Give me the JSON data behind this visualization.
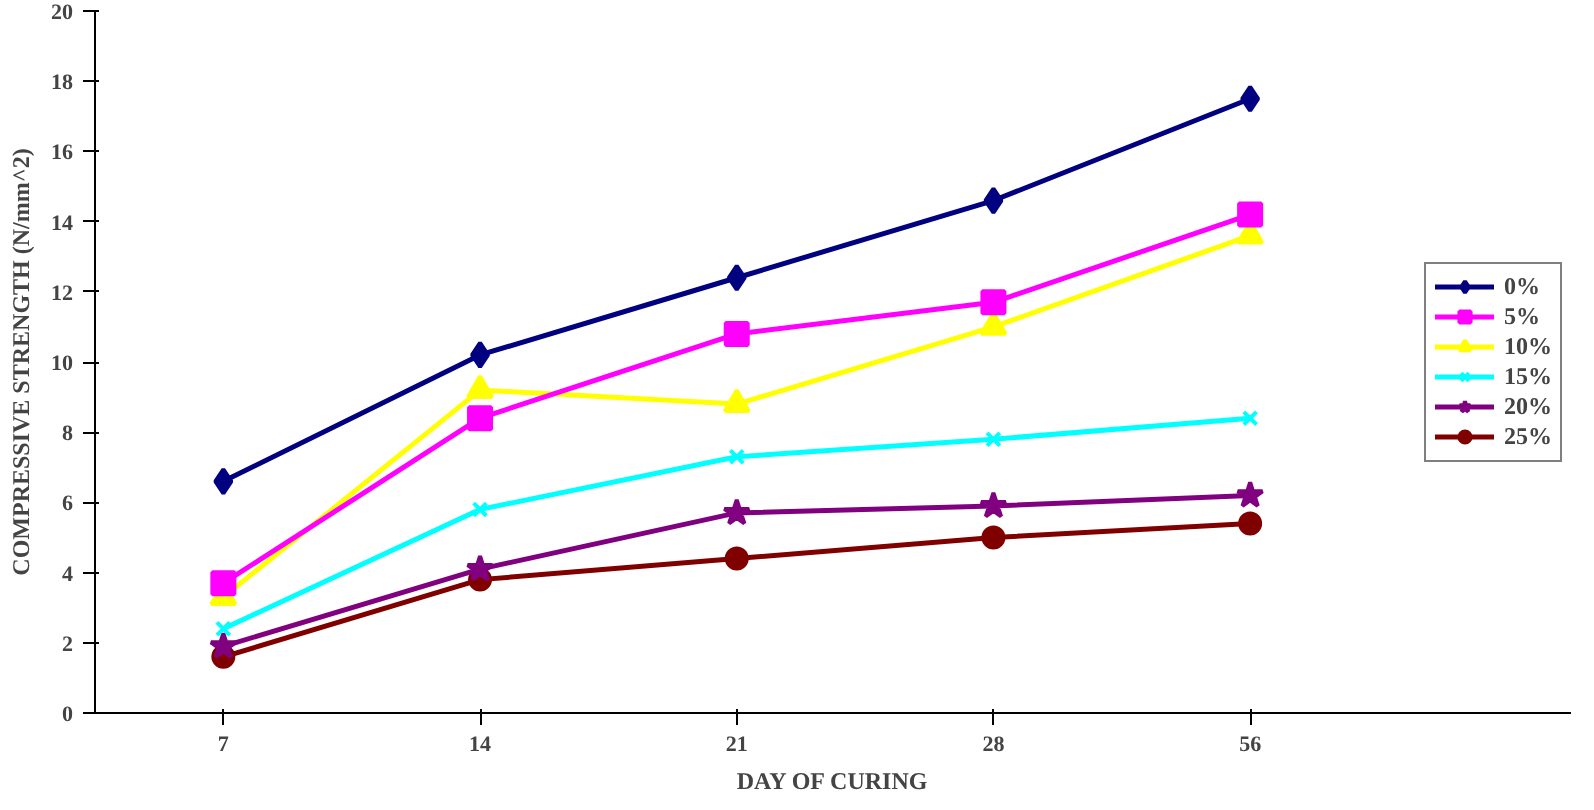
{
  "chart_data": {
    "type": "line",
    "xlabel": "DAY OF CURING",
    "ylabel": "COMPRESSIVE STRENGTH (N/mm^2)",
    "categories": [
      "7",
      "14",
      "21",
      "28",
      "56"
    ],
    "ylim": [
      0,
      20
    ],
    "yticks": [
      0,
      2,
      4,
      6,
      8,
      10,
      12,
      14,
      16,
      18,
      20
    ],
    "grid": false,
    "legend": "right",
    "line_style": "solid",
    "series": [
      {
        "name": "0%",
        "color": "#000080",
        "marker": "diamond",
        "values": [
          6.6,
          10.2,
          12.4,
          14.6,
          17.5
        ]
      },
      {
        "name": "5%",
        "color": "#ff00ff",
        "marker": "square",
        "values": [
          3.7,
          8.4,
          10.8,
          11.7,
          14.2
        ]
      },
      {
        "name": "10%",
        "color": "#ffff00",
        "marker": "triangle",
        "values": [
          3.3,
          9.2,
          8.8,
          11.0,
          13.6
        ]
      },
      {
        "name": "15%",
        "color": "#00ffff",
        "marker": "cross",
        "values": [
          2.4,
          5.8,
          7.3,
          7.8,
          8.4
        ]
      },
      {
        "name": "20%",
        "color": "#800080",
        "marker": "star",
        "values": [
          1.9,
          4.1,
          5.7,
          5.9,
          6.2
        ]
      },
      {
        "name": "25%",
        "color": "#800000",
        "marker": "circle",
        "values": [
          1.6,
          3.8,
          4.4,
          5.0,
          5.4
        ]
      }
    ]
  }
}
